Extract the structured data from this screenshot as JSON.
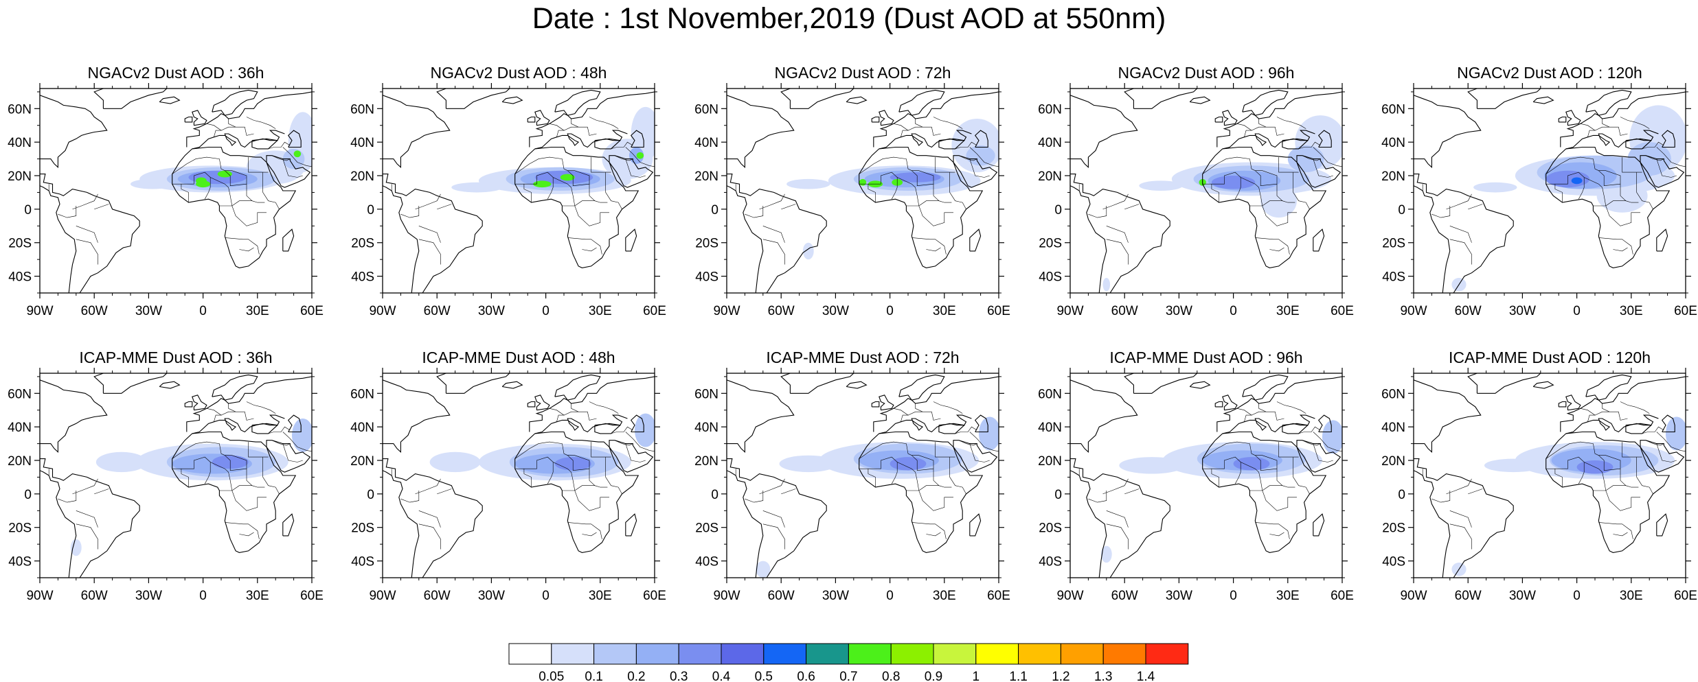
{
  "title": "Date : 1st November,2019 (Dust AOD at 550nm)",
  "lon_labels": [
    "90W",
    "60W",
    "30W",
    "0",
    "30E",
    "60E"
  ],
  "lat_labels": [
    "60N",
    "40N",
    "20N",
    "0",
    "20S",
    "40S"
  ],
  "panels": [
    {
      "title": "NGACv2 Dust AOD : 36h",
      "model": "NGACv2",
      "lead_hours": 36
    },
    {
      "title": "NGACv2 Dust AOD : 48h",
      "model": "NGACv2",
      "lead_hours": 48
    },
    {
      "title": "NGACv2 Dust AOD : 72h",
      "model": "NGACv2",
      "lead_hours": 72
    },
    {
      "title": "NGACv2 Dust AOD : 96h",
      "model": "NGACv2",
      "lead_hours": 96
    },
    {
      "title": "NGACv2 Dust AOD : 120h",
      "model": "NGACv2",
      "lead_hours": 120
    },
    {
      "title": "ICAP-MME Dust AOD : 36h",
      "model": "ICAP-MME",
      "lead_hours": 36
    },
    {
      "title": "ICAP-MME Dust AOD : 48h",
      "model": "ICAP-MME",
      "lead_hours": 48
    },
    {
      "title": "ICAP-MME Dust AOD : 72h",
      "model": "ICAP-MME",
      "lead_hours": 72
    },
    {
      "title": "ICAP-MME Dust AOD : 96h",
      "model": "ICAP-MME",
      "lead_hours": 96
    },
    {
      "title": "ICAP-MME Dust AOD : 120h",
      "model": "ICAP-MME",
      "lead_hours": 120
    }
  ],
  "colorbar": {
    "labels": [
      "0.05",
      "0.1",
      "0.2",
      "0.3",
      "0.4",
      "0.5",
      "0.6",
      "0.7",
      "0.8",
      "0.9",
      "1",
      "1.1",
      "1.2",
      "1.3",
      "1.4"
    ],
    "colors": [
      "#ffffff",
      "#d6e0fa",
      "#b4c8f7",
      "#94b0f5",
      "#7a8ef0",
      "#5c68e8",
      "#1466f5",
      "#18968c",
      "#4cf01a",
      "#8cf000",
      "#c8f53c",
      "#ffff00",
      "#ffc000",
      "#ffa000",
      "#ff7a00",
      "#ff2a14"
    ]
  },
  "colors": {
    "land_outline": "#000000",
    "dust_light": "#d6e0fa",
    "dust_mid": "#94b0f5",
    "dust_high": "#5c68e8",
    "dust_peak": "#4cf01a"
  }
}
